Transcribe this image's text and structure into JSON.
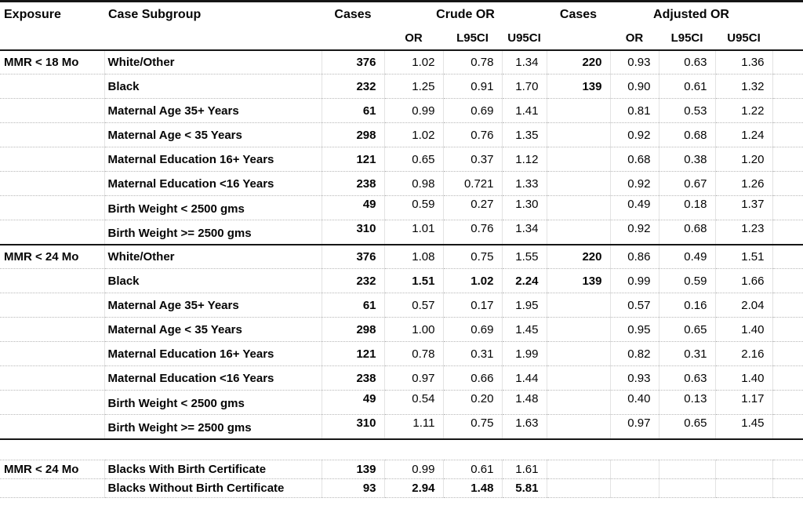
{
  "chart_data": {
    "type": "table",
    "colors": {
      "text": "#050505",
      "rule": "#161616",
      "gridline": "#c9c9c9"
    },
    "header": {
      "exposure": "Exposure",
      "case_subgroup": "Case Subgroup",
      "cases_crude": "Cases",
      "crude_or_group": "Crude OR",
      "cases_adjusted": "Cases",
      "adjusted_or_group": "Adjusted OR",
      "or1": "OR",
      "l95ci1": "L95CI",
      "u95ci1": "U95CI",
      "or2": "OR",
      "l95ci2": "L95CI",
      "u95ci2": "U95CI"
    },
    "groups": [
      {
        "exposure": "MMR < 18 Mo",
        "rows": [
          {
            "subgroup": "White/Other",
            "cases": "376",
            "crude": [
              "1.02",
              "0.78",
              "1.34"
            ],
            "cases2": "220",
            "adjusted": [
              "0.93",
              "0.63",
              "1.36"
            ]
          },
          {
            "subgroup": "Black",
            "cases": "232",
            "crude": [
              "1.25",
              "0.91",
              "1.70"
            ],
            "cases2": "139",
            "adjusted": [
              "0.90",
              "0.61",
              "1.32"
            ]
          },
          {
            "subgroup": "Maternal Age 35+ Years",
            "cases": "61",
            "crude": [
              "0.99",
              "0.69",
              "1.41"
            ],
            "cases2": "",
            "adjusted": [
              "0.81",
              "0.53",
              "1.22"
            ]
          },
          {
            "subgroup": "Maternal Age < 35 Years",
            "cases": "298",
            "crude": [
              "1.02",
              "0.76",
              "1.35"
            ],
            "cases2": "",
            "adjusted": [
              "0.92",
              "0.68",
              "1.24"
            ]
          },
          {
            "subgroup": "Maternal Education 16+ Years",
            "cases": "121",
            "crude": [
              "0.65",
              "0.37",
              "1.12"
            ],
            "cases2": "",
            "adjusted": [
              "0.68",
              "0.38",
              "1.20"
            ]
          },
          {
            "subgroup": "Maternal Education <16 Years",
            "cases": "238",
            "crude": [
              "0.98",
              "0.721",
              "1.33"
            ],
            "cases2": "",
            "adjusted": [
              "0.92",
              "0.67",
              "1.26"
            ]
          },
          {
            "subgroup": "Birth Weight < 2500 gms",
            "cases": "49",
            "crude": [
              "0.59",
              "0.27",
              "1.30"
            ],
            "cases2": "",
            "adjusted": [
              "0.49",
              "0.18",
              "1.37"
            ],
            "shift": true
          },
          {
            "subgroup": "Birth Weight >= 2500 gms",
            "cases": "310",
            "crude": [
              "1.01",
              "0.76",
              "1.34"
            ],
            "cases2": "",
            "adjusted": [
              "0.92",
              "0.68",
              "1.23"
            ],
            "shift": true
          }
        ]
      },
      {
        "exposure": "MMR < 24 Mo",
        "rows": [
          {
            "subgroup": "White/Other",
            "cases": "376",
            "crude": [
              "1.08",
              "0.75",
              "1.55"
            ],
            "cases2": "220",
            "adjusted": [
              "0.86",
              "0.49",
              "1.51"
            ]
          },
          {
            "subgroup": "Black",
            "cases": "232",
            "crude": [
              "1.51",
              "1.02",
              "2.24"
            ],
            "crude_bold": true,
            "cases2": "139",
            "adjusted": [
              "0.99",
              "0.59",
              "1.66"
            ]
          },
          {
            "subgroup": "Maternal Age 35+ Years",
            "cases": "61",
            "crude": [
              "0.57",
              "0.17",
              "1.95"
            ],
            "cases2": "",
            "adjusted": [
              "0.57",
              "0.16",
              "2.04"
            ]
          },
          {
            "subgroup": "Maternal Age < 35 Years",
            "cases": "298",
            "crude": [
              "1.00",
              "0.69",
              "1.45"
            ],
            "cases2": "",
            "adjusted": [
              "0.95",
              "0.65",
              "1.40"
            ]
          },
          {
            "subgroup": "Maternal Education 16+ Years",
            "cases": "121",
            "crude": [
              "0.78",
              "0.31",
              "1.99"
            ],
            "cases2": "",
            "adjusted": [
              "0.82",
              "0.31",
              "2.16"
            ]
          },
          {
            "subgroup": "Maternal Education <16 Years",
            "cases": "238",
            "crude": [
              "0.97",
              "0.66",
              "1.44"
            ],
            "cases2": "",
            "adjusted": [
              "0.93",
              "0.63",
              "1.40"
            ]
          },
          {
            "subgroup": "Birth Weight < 2500 gms",
            "cases": "49",
            "crude": [
              "0.54",
              "0.20",
              "1.48"
            ],
            "cases2": "",
            "adjusted": [
              "0.40",
              "0.13",
              "1.17"
            ],
            "shift": true
          },
          {
            "subgroup": "Birth Weight >= 2500 gms",
            "cases": "310",
            "crude": [
              "1.11",
              "0.75",
              "1.63"
            ],
            "cases2": "",
            "adjusted": [
              "0.97",
              "0.65",
              "1.45"
            ],
            "shift": true
          }
        ]
      },
      {
        "exposure": "MMR < 24 Mo",
        "detached": true,
        "rows": [
          {
            "subgroup": "Blacks With Birth Certificate",
            "cases": "139",
            "crude": [
              "0.99",
              "0.61",
              "1.61"
            ],
            "cases2": "",
            "adjusted": [
              "",
              "",
              ""
            ]
          },
          {
            "subgroup": "Blacks Without Birth Certificate",
            "cases": "93",
            "crude": [
              "2.94",
              "1.48",
              "5.81"
            ],
            "crude_bold": true,
            "cases2": "",
            "adjusted": [
              "",
              "",
              ""
            ]
          }
        ]
      }
    ]
  }
}
